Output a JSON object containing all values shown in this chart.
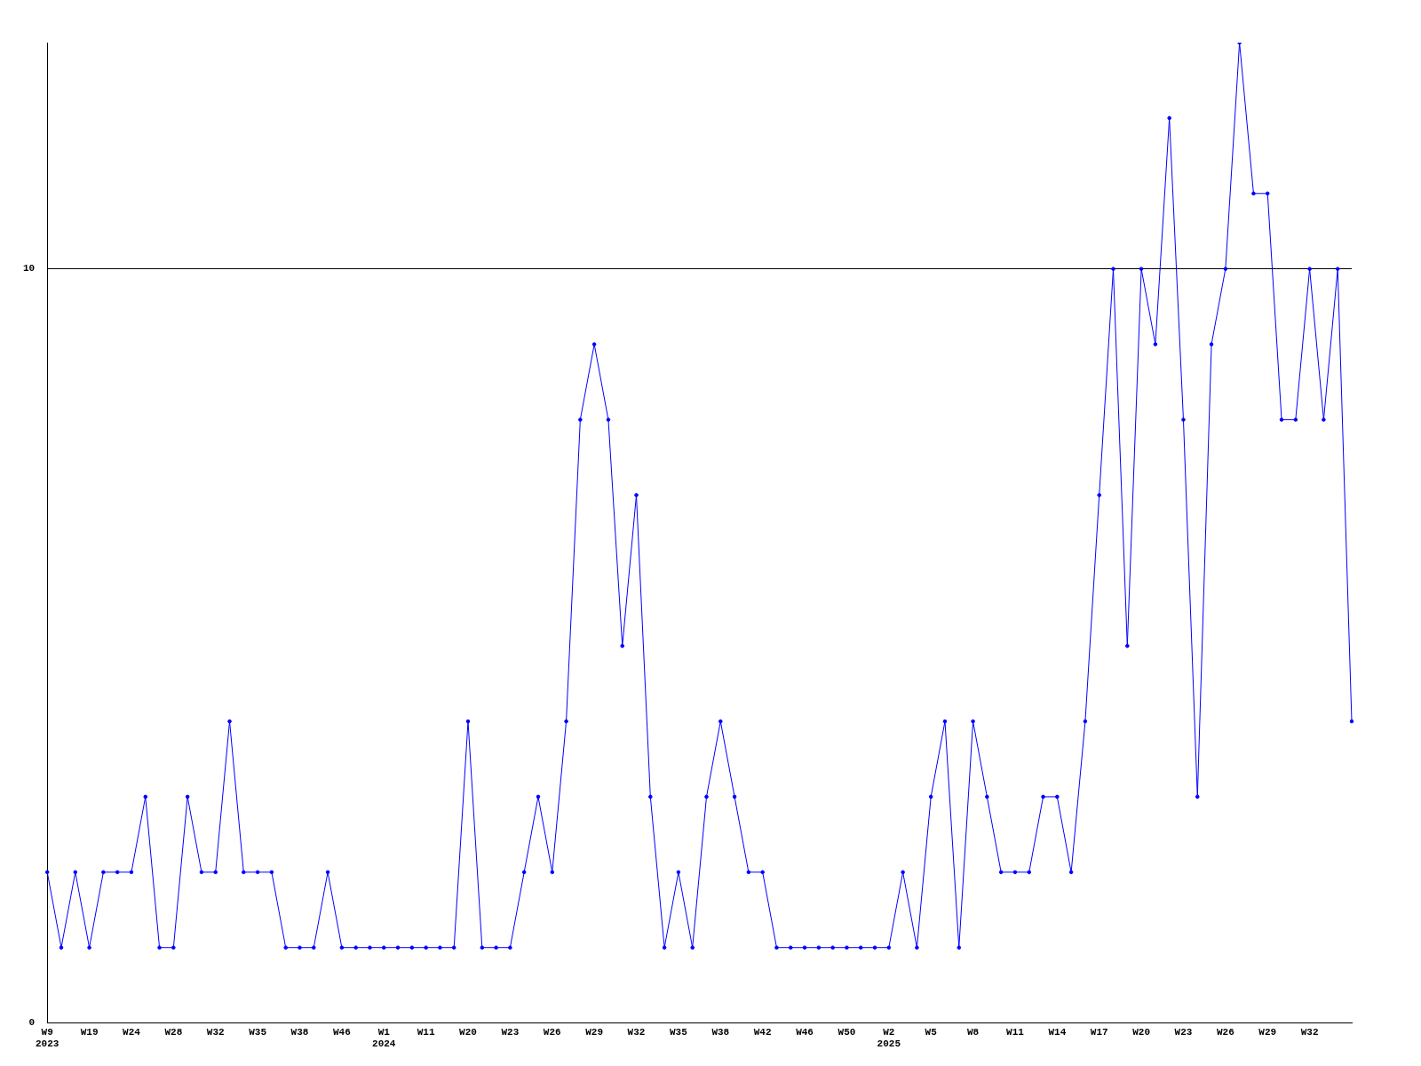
{
  "chart_data": {
    "type": "line",
    "categories": [
      "W9\n2023",
      null,
      null,
      "W19",
      null,
      null,
      "W24",
      null,
      null,
      "W28",
      null,
      null,
      "W32",
      null,
      null,
      "W35",
      null,
      null,
      "W38",
      null,
      null,
      "W46",
      null,
      null,
      "W1\n2024",
      null,
      null,
      "W11",
      null,
      null,
      "W20",
      null,
      null,
      "W23",
      null,
      null,
      "W26",
      null,
      null,
      "W29",
      null,
      null,
      "W32",
      null,
      null,
      "W35",
      null,
      null,
      "W38",
      null,
      null,
      "W42",
      null,
      null,
      "W46",
      null,
      null,
      "W50",
      null,
      null,
      "W2\n2025",
      null,
      null,
      "W5",
      null,
      null,
      "W8",
      null,
      null,
      "W11",
      null,
      null,
      "W14",
      null,
      null,
      "W17",
      null,
      null,
      "W20",
      null,
      null,
      "W23",
      null,
      null,
      "W26",
      null,
      null,
      "W29",
      null,
      null,
      "W32",
      null,
      null,
      null
    ],
    "series": [
      {
        "color": "#0000ff",
        "values": [
          2,
          1,
          2,
          1,
          2,
          2,
          2,
          3,
          1,
          1,
          3,
          2,
          2,
          4,
          2,
          2,
          2,
          1,
          1,
          1,
          2,
          1,
          1,
          1,
          1,
          1,
          1,
          1,
          1,
          1,
          4,
          1,
          1,
          1,
          2,
          3,
          2,
          4,
          8,
          9,
          8,
          5,
          7,
          3,
          1,
          2,
          1,
          3,
          4,
          3,
          2,
          2,
          1,
          1,
          1,
          1,
          1,
          1,
          1,
          1,
          1,
          2,
          1,
          3,
          4,
          1,
          4,
          3,
          2,
          2,
          2,
          3,
          3,
          2,
          4,
          7,
          10,
          5,
          10,
          9,
          12,
          8,
          3,
          9,
          10,
          13,
          11,
          11,
          8,
          8,
          10,
          8,
          10,
          4
        ]
      }
    ],
    "ylim": [
      0,
      13
    ],
    "yticks": [
      0,
      10
    ],
    "grid": "y",
    "marker": "circle",
    "line_style": "solid",
    "legend": false
  }
}
